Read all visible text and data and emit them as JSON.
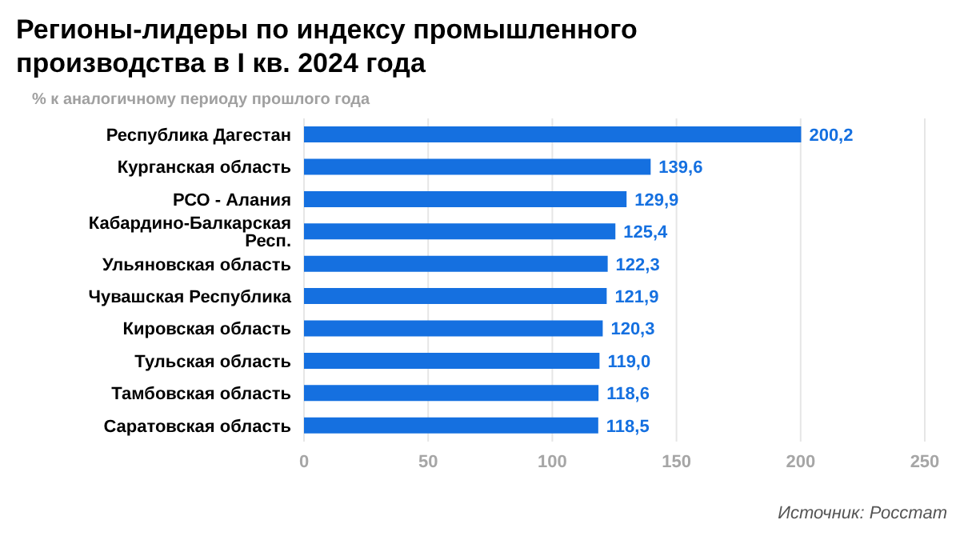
{
  "chart_data": {
    "type": "bar",
    "orientation": "horizontal",
    "title": "Регионы-лидеры по индексу промышленного производства в I кв. 2024 года",
    "subtitle": "% к аналогичному периоду прошлого года",
    "categories": [
      "Республика Дагестан",
      "Курганская область",
      "РСО - Алания",
      "Кабардино-Балкарская Респ.",
      "Ульяновская область",
      "Чувашская Республика",
      "Кировская область",
      "Тульская область",
      "Тамбовская область",
      "Саратовская область"
    ],
    "values": [
      200.2,
      139.6,
      129.9,
      125.4,
      122.3,
      121.9,
      120.3,
      119.0,
      118.6,
      118.5
    ],
    "value_labels": [
      "200,2",
      "139,6",
      "129,9",
      "125,4",
      "122,3",
      "121,9",
      "120,3",
      "119,0",
      "118,6",
      "118,5"
    ],
    "color": "#1570e0",
    "xlim": [
      0,
      250
    ],
    "xticks": [
      0,
      50,
      100,
      150,
      200,
      250
    ],
    "grid": "x",
    "annotations": [
      "Источник: Росстат"
    ]
  }
}
